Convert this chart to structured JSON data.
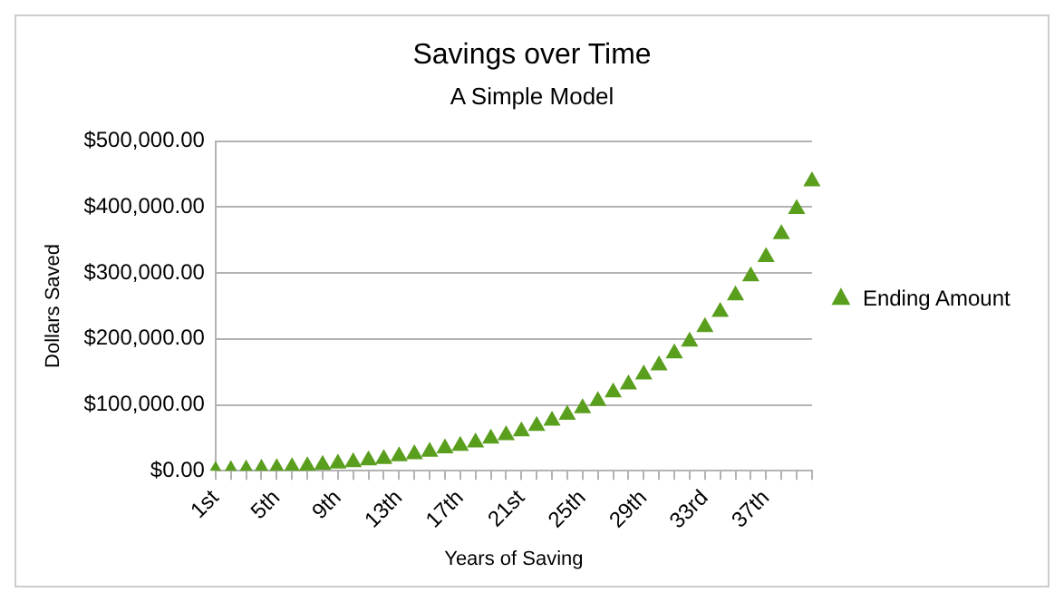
{
  "chart_data": {
    "type": "scatter",
    "title": "Savings over Time",
    "subtitle": "A Simple Model",
    "xlabel": "Years of Saving",
    "ylabel": "Dollars Saved",
    "categories": [
      "1st",
      null,
      null,
      null,
      "5th",
      null,
      null,
      null,
      "9th",
      null,
      null,
      null,
      "13th",
      null,
      null,
      null,
      "17th",
      null,
      null,
      null,
      "21st",
      null,
      null,
      null,
      "25th",
      null,
      null,
      null,
      "29th",
      null,
      null,
      null,
      "33rd",
      null,
      null,
      null,
      "37th",
      null,
      null,
      null
    ],
    "series": [
      {
        "name": "Ending Amount",
        "color": "#5a9e1e",
        "values": [
          0,
          1000,
          2000,
          3000,
          4000,
          5500,
          7000,
          9000,
          11000,
          13000,
          16000,
          18000,
          22000,
          25000,
          29000,
          34000,
          38000,
          43000,
          49000,
          54000,
          60000,
          68000,
          76000,
          85000,
          95000,
          106000,
          119000,
          131000,
          146000,
          160000,
          178000,
          196000,
          218000,
          241000,
          266000,
          295000,
          324000,
          359000,
          397000,
          439000
        ]
      }
    ],
    "ylim": [
      0,
      500000
    ],
    "yticks": [
      {
        "value": 0,
        "label": "$0.00"
      },
      {
        "value": 100000,
        "label": "$100,000.00"
      },
      {
        "value": 200000,
        "label": "$200,000.00"
      },
      {
        "value": 300000,
        "label": "$300,000.00"
      },
      {
        "value": 400000,
        "label": "$400,000.00"
      },
      {
        "value": 500000,
        "label": "$500,000.00"
      }
    ],
    "grid": "y",
    "legend": "right",
    "marker": "triangle"
  }
}
